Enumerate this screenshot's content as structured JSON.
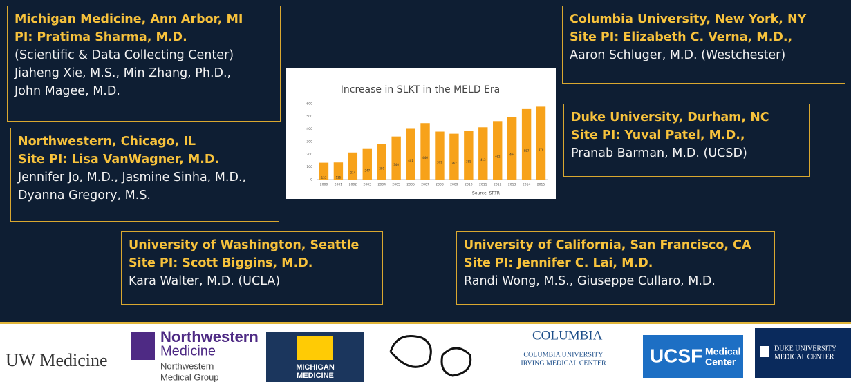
{
  "sites": [
    {
      "title": "Michigan Medicine, Ann Arbor, MI",
      "pi": "PI: Pratima Sharma, M.D.",
      "members": [
        "(Scientific & Data Collecting Center)",
        "Jiaheng Xie, M.S., Min Zhang, Ph.D.,",
        "John Magee, M.D."
      ]
    },
    {
      "title": "Northwestern, Chicago, IL",
      "pi": "Site PI: Lisa VanWagner, M.D.",
      "members": [
        "Jennifer Jo, M.D., Jasmine Sinha, M.D.,",
        "Dyanna Gregory, M.S."
      ]
    },
    {
      "title": "University of Washington, Seattle",
      "pi": "Site PI: Scott Biggins, M.D.",
      "members": [
        "Kara Walter, M.D. (UCLA)"
      ]
    },
    {
      "title": "Columbia University, New York, NY",
      "pi": "Site PI: Elizabeth C. Verna, M.D.,",
      "members": [
        "Aaron Schluger, M.D. (Westchester)"
      ]
    },
    {
      "title": "Duke University, Durham, NC",
      "pi": "Site PI: Yuval Patel, M.D.,",
      "members": [
        "Pranab Barman, M.D. (UCSD)"
      ]
    },
    {
      "title": "University of California, San Francisco, CA",
      "pi": "Site PI: Jennifer C. Lai, M.D.",
      "members": [
        "Randi Wong, M.S., Giuseppe Cullaro, M.D."
      ]
    }
  ],
  "chart_data": {
    "type": "bar",
    "title": "Increase in SLKT in the MELD Era",
    "source": "Source: SRTR",
    "categories": [
      "2000",
      "2001",
      "2002",
      "2003",
      "2004",
      "2005",
      "2006",
      "2007",
      "2008",
      "2009",
      "2010",
      "2011",
      "2012",
      "2013",
      "2014",
      "2015"
    ],
    "values": [
      133,
      135,
      214,
      247,
      280,
      340,
      401,
      446,
      379,
      362,
      385,
      413,
      462,
      494,
      557,
      576
    ],
    "color": "#f7a21a",
    "ylim": [
      0,
      600
    ],
    "yticks": [
      0,
      100,
      200,
      300,
      400,
      500,
      600
    ],
    "grid": false
  },
  "logos": [
    "UW Medicine",
    "Northwestern",
    "Medicine",
    "Northwestern",
    "Medical Group",
    "MICHIGAN",
    "MEDICINE",
    "COLUMBIA",
    "COLUMBIA UNIVERSITY",
    "IRVING MEDICAL CENTER",
    "UCSF",
    "Medical",
    "Center",
    "DUKE UNIVERSITY",
    "MEDICAL CENTER"
  ]
}
